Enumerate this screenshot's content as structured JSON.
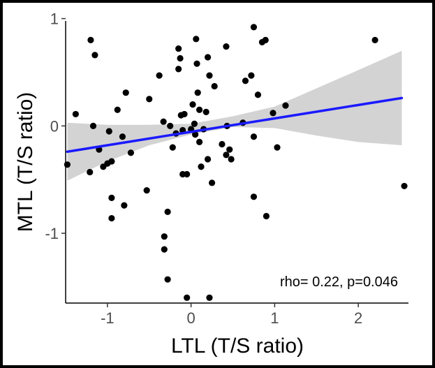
{
  "chart_data": {
    "type": "scatter",
    "xlabel": "LTL (T/S ratio)",
    "ylabel": "MTL (T/S ratio)",
    "xlim": [
      -1.5,
      2.6
    ],
    "ylim": [
      -1.65,
      1.03
    ],
    "x_ticks": [
      -1,
      0,
      1,
      2
    ],
    "x_tick_labels": [
      "-1",
      "0",
      "1",
      "2"
    ],
    "y_ticks": [
      -1,
      0,
      1
    ],
    "y_tick_labels": [
      "-1",
      "0",
      "1"
    ],
    "grid": false,
    "annotation": "rho= 0.22, p=0.046",
    "colors": {
      "points": "#000000",
      "fit_line": "#1a1aff",
      "confidence_band": "#d3d3d3",
      "frame": "#000000"
    },
    "regression": {
      "x": [
        -1.48,
        2.52
      ],
      "y": [
        -0.24,
        0.26
      ]
    },
    "confidence_band": {
      "x": [
        -1.48,
        -1.0,
        -0.5,
        0.0,
        0.5,
        1.0,
        1.5,
        2.0,
        2.52
      ],
      "lower": [
        -0.51,
        -0.33,
        -0.18,
        -0.08,
        -0.01,
        -0.02,
        -0.09,
        -0.15,
        -0.18
      ],
      "upper": [
        0.03,
        0.01,
        0.01,
        0.02,
        0.09,
        0.18,
        0.35,
        0.52,
        0.7
      ]
    },
    "points": [
      {
        "x": -1.48,
        "y": -0.36
      },
      {
        "x": -1.38,
        "y": 0.11
      },
      {
        "x": -1.2,
        "y": 0.8
      },
      {
        "x": -1.15,
        "y": 0.66
      },
      {
        "x": -1.17,
        "y": 0.0
      },
      {
        "x": -1.21,
        "y": -0.43
      },
      {
        "x": -1.1,
        "y": -0.22
      },
      {
        "x": -1.05,
        "y": -0.38
      },
      {
        "x": -1.0,
        "y": -0.35
      },
      {
        "x": -0.98,
        "y": -0.05
      },
      {
        "x": -0.95,
        "y": -0.33
      },
      {
        "x": -0.95,
        "y": -0.67
      },
      {
        "x": -0.95,
        "y": -0.86
      },
      {
        "x": -0.88,
        "y": 0.15
      },
      {
        "x": -0.82,
        "y": -0.1
      },
      {
        "x": -0.78,
        "y": 0.31
      },
      {
        "x": -0.8,
        "y": -0.74
      },
      {
        "x": -0.72,
        "y": -0.25
      },
      {
        "x": -0.5,
        "y": 0.25
      },
      {
        "x": -0.53,
        "y": -0.6
      },
      {
        "x": -0.38,
        "y": 0.47
      },
      {
        "x": -0.33,
        "y": 0.04
      },
      {
        "x": -0.32,
        "y": -1.03
      },
      {
        "x": -0.32,
        "y": -1.15
      },
      {
        "x": -0.28,
        "y": -0.8
      },
      {
        "x": -0.28,
        "y": -1.43
      },
      {
        "x": -0.25,
        "y": 0.0
      },
      {
        "x": -0.22,
        "y": -0.2
      },
      {
        "x": -0.18,
        "y": -0.07
      },
      {
        "x": -0.15,
        "y": 0.72
      },
      {
        "x": -0.15,
        "y": 0.53
      },
      {
        "x": -0.13,
        "y": 0.63
      },
      {
        "x": -0.1,
        "y": -0.04
      },
      {
        "x": -0.12,
        "y": 0.1
      },
      {
        "x": -0.08,
        "y": 0.11
      },
      {
        "x": -0.1,
        "y": -0.45
      },
      {
        "x": -0.05,
        "y": -0.45
      },
      {
        "x": -0.05,
        "y": -1.6
      },
      {
        "x": 0.0,
        "y": -0.03
      },
      {
        "x": 0.02,
        "y": 0.2
      },
      {
        "x": 0.04,
        "y": 0.02
      },
      {
        "x": 0.05,
        "y": -0.08
      },
      {
        "x": 0.06,
        "y": 0.81
      },
      {
        "x": 0.07,
        "y": 0.58
      },
      {
        "x": 0.08,
        "y": 0.31
      },
      {
        "x": 0.1,
        "y": 0.15
      },
      {
        "x": 0.1,
        "y": -0.15
      },
      {
        "x": 0.12,
        "y": -0.38
      },
      {
        "x": 0.15,
        "y": -0.03
      },
      {
        "x": 0.18,
        "y": 0.13
      },
      {
        "x": 0.2,
        "y": 0.64
      },
      {
        "x": 0.2,
        "y": -0.31
      },
      {
        "x": 0.22,
        "y": 0.47
      },
      {
        "x": 0.25,
        "y": -0.53
      },
      {
        "x": 0.22,
        "y": -1.6
      },
      {
        "x": 0.28,
        "y": 0.37
      },
      {
        "x": 0.37,
        "y": -0.17
      },
      {
        "x": 0.42,
        "y": 0.74
      },
      {
        "x": 0.43,
        "y": 0.0
      },
      {
        "x": 0.42,
        "y": -0.27
      },
      {
        "x": 0.46,
        "y": -0.22
      },
      {
        "x": 0.48,
        "y": -0.31
      },
      {
        "x": 0.62,
        "y": 0.03
      },
      {
        "x": 0.65,
        "y": 0.42
      },
      {
        "x": 0.72,
        "y": 0.47
      },
      {
        "x": 0.75,
        "y": 0.92
      },
      {
        "x": 0.75,
        "y": -0.1
      },
      {
        "x": 0.75,
        "y": -0.66
      },
      {
        "x": 0.8,
        "y": 0.29
      },
      {
        "x": 0.85,
        "y": 0.78
      },
      {
        "x": 0.89,
        "y": 0.8
      },
      {
        "x": 0.9,
        "y": -0.84
      },
      {
        "x": 0.98,
        "y": 0.12
      },
      {
        "x": 1.03,
        "y": -0.2
      },
      {
        "x": 1.13,
        "y": 0.19
      },
      {
        "x": 2.2,
        "y": 0.8
      },
      {
        "x": 2.55,
        "y": -0.56
      }
    ]
  }
}
